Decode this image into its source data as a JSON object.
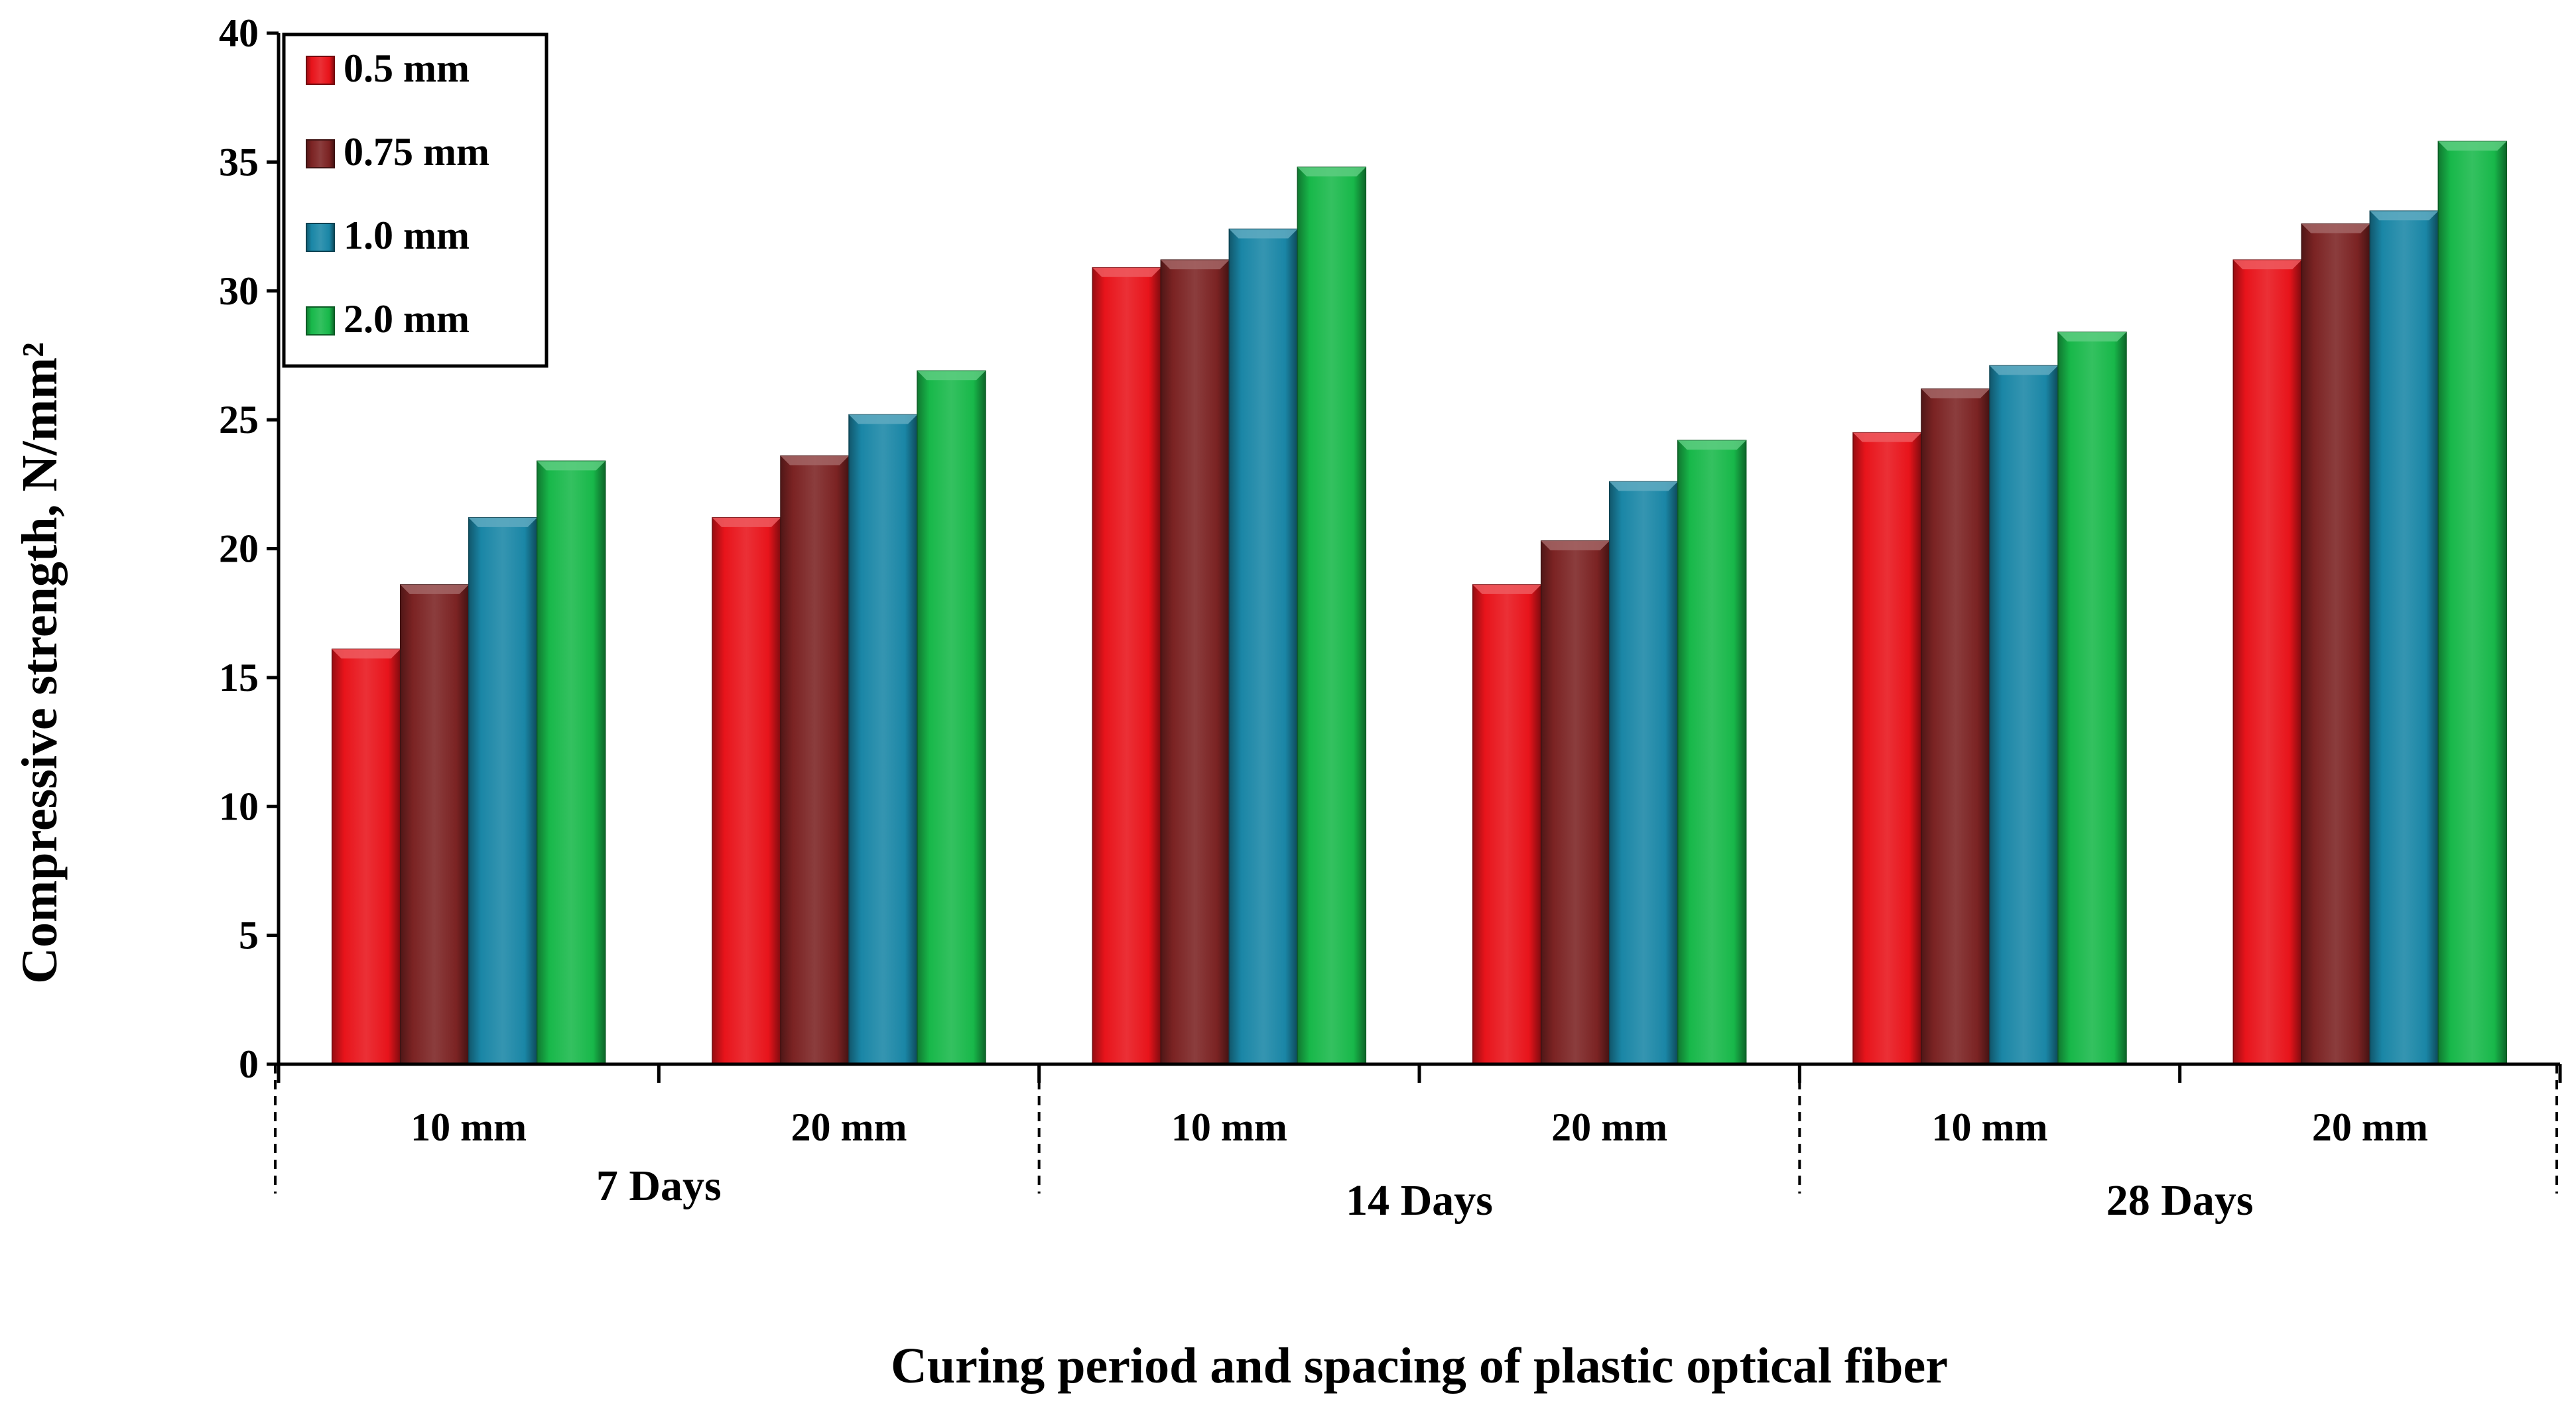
{
  "chart_data": {
    "type": "bar",
    "xlabel": "Curing period and spacing of plastic optical fiber",
    "ylabel": "Compressive strength, N/mm²",
    "ylim": [
      0,
      40
    ],
    "yticks": [
      0,
      5,
      10,
      15,
      20,
      25,
      30,
      35,
      40
    ],
    "categories": [
      "10 mm",
      "20 mm",
      "10 mm",
      "20 mm",
      "10 mm",
      "20 mm"
    ],
    "groups": [
      {
        "label": "7 Days",
        "categories": [
          0,
          1
        ]
      },
      {
        "label": "14 Days",
        "categories": [
          2,
          3
        ]
      },
      {
        "label": "28 Days",
        "categories": [
          4,
          5
        ]
      }
    ],
    "legend_position": "top-left",
    "grid": false,
    "series": [
      {
        "name": "0.5 mm",
        "color": "#e8141b",
        "values": [
          16.1,
          21.2,
          30.9,
          18.6,
          24.5,
          31.2
        ]
      },
      {
        "name": "0.75 mm",
        "color": "#7b2323",
        "values": [
          18.6,
          23.6,
          31.2,
          20.3,
          26.2,
          32.6
        ]
      },
      {
        "name": "1.0 mm",
        "color": "#1a86a6",
        "values": [
          21.2,
          25.2,
          32.4,
          22.6,
          27.1,
          33.1
        ]
      },
      {
        "name": "2.0 mm",
        "color": "#18b84a",
        "values": [
          23.4,
          26.9,
          34.8,
          24.2,
          28.4,
          35.8
        ]
      }
    ]
  }
}
